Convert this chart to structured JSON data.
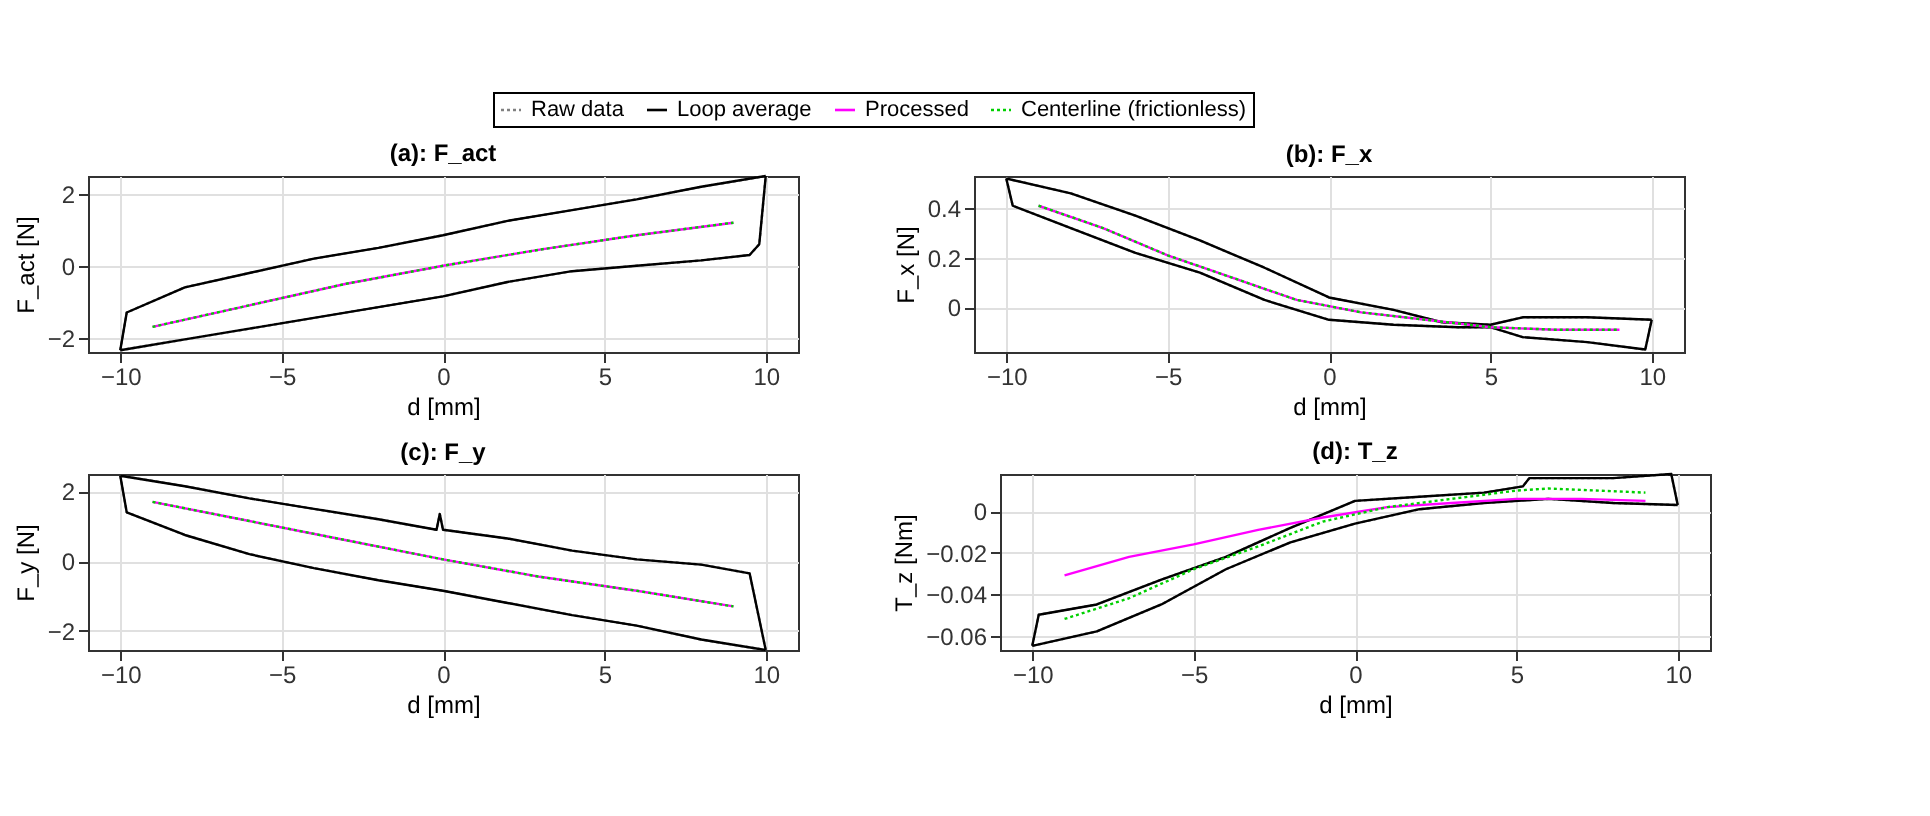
{
  "chart_data": [
    {
      "type": "line",
      "title": "(a): F_act",
      "xlabel": "d [mm]",
      "ylabel": "F_act [N]",
      "xlim": [
        -11,
        11
      ],
      "xticks": [
        -10,
        -5,
        0,
        5,
        10
      ],
      "ylim": [
        -2.4,
        2.5
      ],
      "yticks": [
        -2,
        0,
        2
      ],
      "grid": true,
      "legend": "top",
      "series": [
        {
          "name": "Raw data",
          "color": "#808080",
          "line_style": "dotted",
          "x": [
            -10,
            -9.8,
            -8,
            -6,
            -4,
            -2,
            0,
            2,
            4,
            6,
            8,
            10
          ],
          "values": [
            -2.35,
            -1.3,
            -0.6,
            -0.2,
            0.2,
            0.5,
            0.85,
            1.25,
            1.55,
            1.85,
            2.2,
            2.5
          ]
        },
        {
          "color": "#808080",
          "line_style": "dotted",
          "x": [
            -10,
            -8,
            -6,
            -4,
            -2,
            0,
            2,
            4,
            6,
            8,
            9.5,
            9.8,
            10
          ],
          "values": [
            -2.35,
            -2.05,
            -1.75,
            -1.45,
            -1.15,
            -0.85,
            -0.45,
            -0.15,
            0.0,
            0.15,
            0.3,
            0.6,
            2.5
          ]
        },
        {
          "name": "Loop average",
          "color": "#000000",
          "line_style": "solid",
          "x": [
            -10,
            -9.8,
            -8,
            -6,
            -4,
            -2,
            0,
            2,
            4,
            6,
            8,
            10
          ],
          "values": [
            -2.35,
            -1.3,
            -0.6,
            -0.2,
            0.2,
            0.5,
            0.85,
            1.25,
            1.55,
            1.85,
            2.2,
            2.5
          ]
        },
        {
          "color": "#000000",
          "line_style": "solid",
          "x": [
            -10,
            -8,
            -6,
            -4,
            -2,
            0,
            2,
            4,
            6,
            8,
            9.5,
            9.8,
            10
          ],
          "values": [
            -2.35,
            -2.05,
            -1.75,
            -1.45,
            -1.15,
            -0.85,
            -0.45,
            -0.15,
            0.0,
            0.15,
            0.3,
            0.6,
            2.5
          ]
        },
        {
          "name": "Processed",
          "color": "#ff00ff",
          "line_style": "solid",
          "x": [
            -9,
            -6,
            -3,
            0,
            3,
            6,
            9
          ],
          "values": [
            -1.7,
            -1.1,
            -0.5,
            0,
            0.45,
            0.85,
            1.2
          ]
        },
        {
          "name": "Centerline (frictionless)",
          "color": "#00d000",
          "line_style": "dotted",
          "x": [
            -9,
            -6,
            -3,
            0,
            3,
            6,
            9
          ],
          "values": [
            -1.7,
            -1.1,
            -0.5,
            0,
            0.45,
            0.85,
            1.2
          ]
        }
      ]
    },
    {
      "type": "line",
      "title": "(b): F_x",
      "xlabel": "d [mm]",
      "ylabel": "F_x [N]",
      "xlim": [
        -11,
        11
      ],
      "xticks": [
        -10,
        -5,
        0,
        5,
        10
      ],
      "ylim": [
        -0.18,
        0.53
      ],
      "yticks": [
        0,
        0.2,
        0.4
      ],
      "grid": true,
      "series": [
        {
          "color": "#808080",
          "line_style": "dotted",
          "x": [
            -10,
            -8,
            -6,
            -4,
            -2,
            0,
            2,
            3.5,
            5,
            6,
            8,
            10
          ],
          "values": [
            0.52,
            0.46,
            0.37,
            0.27,
            0.16,
            0.04,
            -0.01,
            -0.06,
            -0.07,
            -0.04,
            -0.04,
            -0.05
          ]
        },
        {
          "color": "#808080",
          "line_style": "dotted",
          "x": [
            -10,
            -9.8,
            -8,
            -6,
            -4,
            -2,
            0,
            2,
            4,
            5,
            6,
            8,
            9.8,
            10
          ],
          "values": [
            0.52,
            0.41,
            0.32,
            0.22,
            0.14,
            0.03,
            -0.05,
            -0.07,
            -0.08,
            -0.08,
            -0.12,
            -0.14,
            -0.17,
            -0.05
          ]
        },
        {
          "color": "#000000",
          "line_style": "solid",
          "x": [
            -10,
            -8,
            -6,
            -4,
            -2,
            0,
            2,
            3.5,
            5,
            6,
            8,
            10
          ],
          "values": [
            0.52,
            0.46,
            0.37,
            0.27,
            0.16,
            0.04,
            -0.01,
            -0.06,
            -0.07,
            -0.04,
            -0.04,
            -0.05
          ]
        },
        {
          "color": "#000000",
          "line_style": "solid",
          "x": [
            -10,
            -9.8,
            -8,
            -6,
            -4,
            -2,
            0,
            2,
            4,
            5,
            6,
            8,
            9.8,
            10
          ],
          "values": [
            0.52,
            0.41,
            0.32,
            0.22,
            0.14,
            0.03,
            -0.05,
            -0.07,
            -0.08,
            -0.08,
            -0.12,
            -0.14,
            -0.17,
            -0.05
          ]
        },
        {
          "color": "#ff00ff",
          "line_style": "solid",
          "x": [
            -9,
            -7,
            -5,
            -3,
            -1,
            1,
            3,
            5,
            7,
            9
          ],
          "values": [
            0.41,
            0.32,
            0.21,
            0.12,
            0.03,
            -0.02,
            -0.05,
            -0.08,
            -0.09,
            -0.09
          ]
        },
        {
          "color": "#00d000",
          "line_style": "dotted",
          "x": [
            -9,
            -7,
            -5,
            -3,
            -1,
            1,
            3,
            5,
            7,
            9
          ],
          "values": [
            0.41,
            0.32,
            0.21,
            0.12,
            0.03,
            -0.02,
            -0.05,
            -0.08,
            -0.09,
            -0.09
          ]
        }
      ]
    },
    {
      "type": "line",
      "title": "(c): F_y",
      "xlabel": "d [mm]",
      "ylabel": "F_y [N]",
      "xlim": [
        -11,
        11
      ],
      "xticks": [
        -10,
        -5,
        0,
        5,
        10
      ],
      "ylim": [
        -2.55,
        2.5
      ],
      "yticks": [
        -2,
        0,
        2
      ],
      "grid": true,
      "series": [
        {
          "color": "#808080",
          "line_style": "dotted",
          "x": [
            -10,
            -8,
            -6,
            -4,
            -2,
            -0.2,
            -0.1,
            0,
            2,
            4,
            6,
            8,
            9.5,
            10
          ],
          "values": [
            2.45,
            2.15,
            1.8,
            1.5,
            1.2,
            0.9,
            1.35,
            0.9,
            0.65,
            0.3,
            0.05,
            -0.1,
            -0.35,
            -2.55
          ]
        },
        {
          "color": "#808080",
          "line_style": "dotted",
          "x": [
            -10,
            -9.8,
            -8,
            -6,
            -4,
            -2,
            0,
            2,
            4,
            6,
            8,
            10
          ],
          "values": [
            2.45,
            1.4,
            0.75,
            0.2,
            -0.2,
            -0.55,
            -0.85,
            -1.2,
            -1.55,
            -1.85,
            -2.25,
            -2.55
          ]
        },
        {
          "color": "#000000",
          "line_style": "solid",
          "x": [
            -10,
            -8,
            -6,
            -4,
            -2,
            -0.2,
            -0.1,
            0,
            2,
            4,
            6,
            8,
            9.5,
            10
          ],
          "values": [
            2.45,
            2.15,
            1.8,
            1.5,
            1.2,
            0.9,
            1.35,
            0.9,
            0.65,
            0.3,
            0.05,
            -0.1,
            -0.35,
            -2.55
          ]
        },
        {
          "color": "#000000",
          "line_style": "solid",
          "x": [
            -10,
            -9.8,
            -8,
            -6,
            -4,
            -2,
            0,
            2,
            4,
            6,
            8,
            10
          ],
          "values": [
            2.45,
            1.4,
            0.75,
            0.2,
            -0.2,
            -0.55,
            -0.85,
            -1.2,
            -1.55,
            -1.85,
            -2.25,
            -2.55
          ]
        },
        {
          "color": "#ff00ff",
          "line_style": "solid",
          "x": [
            -9,
            -6,
            -3,
            0,
            3,
            6,
            9
          ],
          "values": [
            1.7,
            1.15,
            0.6,
            0.05,
            -0.45,
            -0.85,
            -1.3
          ]
        },
        {
          "color": "#00d000",
          "line_style": "dotted",
          "x": [
            -9,
            -6,
            -3,
            0,
            3,
            6,
            9
          ],
          "values": [
            1.7,
            1.15,
            0.6,
            0.05,
            -0.45,
            -0.85,
            -1.3
          ]
        }
      ]
    },
    {
      "type": "line",
      "title": "(d): T_z",
      "xlabel": "d [mm]",
      "ylabel": "T_z [Nm]",
      "xlim": [
        -11,
        11
      ],
      "xticks": [
        -10,
        -5,
        0,
        5,
        10
      ],
      "ylim": [
        -0.067,
        0.018
      ],
      "yticks": [
        -0.06,
        -0.04,
        -0.02,
        0
      ],
      "grid": true,
      "series": [
        {
          "color": "#808080",
          "line_style": "dotted",
          "x": [
            -10,
            -9.8,
            -8,
            -6,
            -4,
            -2,
            0,
            2,
            4,
            5.2,
            5.4,
            8,
            9.8,
            10
          ],
          "values": [
            -0.065,
            -0.05,
            -0.045,
            -0.033,
            -0.022,
            -0.008,
            0.005,
            0.007,
            0.009,
            0.012,
            0.016,
            0.016,
            0.018,
            0.003
          ]
        },
        {
          "color": "#808080",
          "line_style": "dotted",
          "x": [
            -10,
            -8,
            -6,
            -4,
            -2,
            0,
            2,
            4,
            6,
            8,
            10
          ],
          "values": [
            -0.065,
            -0.058,
            -0.045,
            -0.028,
            -0.015,
            -0.006,
            0.001,
            0.004,
            0.006,
            0.004,
            0.003
          ]
        },
        {
          "color": "#000000",
          "line_style": "solid",
          "x": [
            -10,
            -9.8,
            -8,
            -6,
            -4,
            -2,
            0,
            2,
            4,
            5.2,
            5.4,
            8,
            9.8,
            10
          ],
          "values": [
            -0.065,
            -0.05,
            -0.045,
            -0.033,
            -0.022,
            -0.008,
            0.005,
            0.007,
            0.009,
            0.012,
            0.016,
            0.016,
            0.018,
            0.003
          ]
        },
        {
          "color": "#000000",
          "line_style": "solid",
          "x": [
            -10,
            -8,
            -6,
            -4,
            -2,
            0,
            2,
            4,
            6,
            8,
            10
          ],
          "values": [
            -0.065,
            -0.058,
            -0.045,
            -0.028,
            -0.015,
            -0.006,
            0.001,
            0.004,
            0.006,
            0.004,
            0.003
          ]
        },
        {
          "color": "#ff00ff",
          "line_style": "solid",
          "x": [
            -9,
            -7,
            -5,
            -3,
            -1,
            1,
            3,
            5,
            7,
            9
          ],
          "values": [
            -0.031,
            -0.022,
            -0.016,
            -0.009,
            -0.003,
            0.002,
            0.004,
            0.006,
            0.006,
            0.005
          ]
        },
        {
          "color": "#00d000",
          "line_style": "dotted",
          "x": [
            -9,
            -7,
            -5,
            -3,
            -1,
            1,
            3,
            5,
            6,
            9
          ],
          "values": [
            -0.052,
            -0.042,
            -0.028,
            -0.017,
            -0.005,
            0.002,
            0.006,
            0.01,
            0.011,
            0.009
          ]
        }
      ]
    }
  ]
}
